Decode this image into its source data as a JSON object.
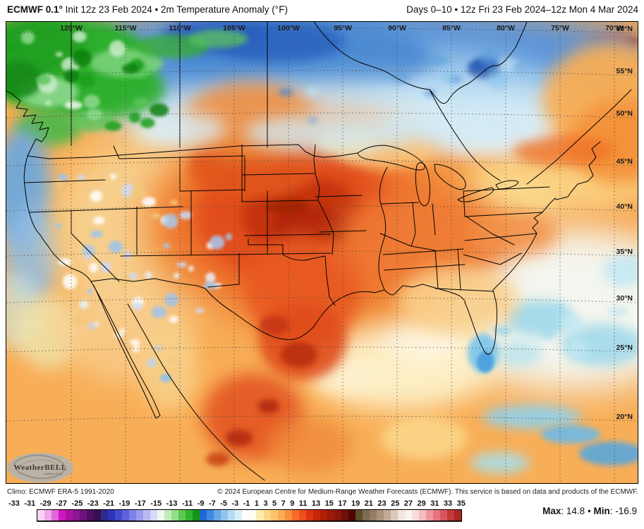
{
  "header": {
    "model_bold": "ECMWF 0.1°",
    "init_text": " Init 12z 23 Feb 2024 • 2m Temperature Anomaly (°F)",
    "valid_text": "Days 0–10 • 12z Fri 23 Feb 2024–12z Mon 4 Mar 2024"
  },
  "map": {
    "lon_labels": [
      "120°W",
      "115°W",
      "110°W",
      "105°W",
      "100°W",
      "95°W",
      "90°W",
      "85°W",
      "80°W",
      "75°W",
      "70°W"
    ],
    "lat_labels": [
      "60°N",
      "55°N",
      "50°N",
      "45°N",
      "40°N",
      "35°N",
      "30°N",
      "25°N",
      "20°N"
    ],
    "logo": {
      "title": "WeatherBELL",
      "subtitle": "Analytics LLC"
    },
    "region_colors": {
      "base_orange": "#f8ae57",
      "deep_orange": "#ef7f2e",
      "atl_orange": "#f49038",
      "pale_yellow": "#fbd788",
      "cream": "#fdeec4",
      "white_zone": "#f4f5ee",
      "cyan_patch": "#9fd8ea",
      "canada_blue": "#5b94d8",
      "canada_blue_dark": "#2f66c0",
      "canada_navy": "#1d4fae",
      "canada_light": "#9cc8ec",
      "canada_pale": "#d2eaf6",
      "nw_green": "#2fae2f",
      "nw_green_dark": "#128a12",
      "nw_green_light": "#8fd98f",
      "core_red": "#e14e1d",
      "core_dark_red": "#c23310",
      "core_darkest": "#a22305",
      "warm_orange": "#f08a3a",
      "pacific_blue": "#6fa8dc",
      "florida_cyan": "#7fc8ea",
      "island_blue": "#5aa7dc"
    }
  },
  "footer": {
    "climo": "Climo: ECMWF ERA-5 1991-2020",
    "copyright": "© 2024 European Centre for Medium-Range Weather Forecasts (ECMWF). This service is based on data and products of the ECMWF.",
    "max_label": "Max",
    "max_value": "14.8",
    "sep": "•",
    "min_label": "Min",
    "min_value": "-16.9"
  },
  "colorbar": {
    "tick_labels": [
      -33,
      -31,
      -29,
      -27,
      -25,
      -23,
      -21,
      -19,
      -17,
      -15,
      -13,
      -11,
      -9,
      -7,
      -5,
      -3,
      -1,
      1,
      3,
      5,
      7,
      9,
      11,
      13,
      15,
      17,
      19,
      21,
      23,
      25,
      27,
      29,
      31,
      33,
      35
    ],
    "colors": [
      "#f7d4f1",
      "#f0a5e9",
      "#e266da",
      "#ce17c0",
      "#ab12a2",
      "#8d1692",
      "#6e117b",
      "#500d61",
      "#35104f",
      "#2b2b91",
      "#2e34ba",
      "#444ace",
      "#5e61d9",
      "#7e80e5",
      "#9b9ced",
      "#b8b9f4",
      "#d7d8fa",
      "#edf9ec",
      "#c3ecbb",
      "#94dd8b",
      "#5bc852",
      "#2fb42f",
      "#169519",
      "#2268d3",
      "#3f8ae0",
      "#69a8e8",
      "#92c2ee",
      "#b8dbf4",
      "#d8eef8",
      "#ffffff",
      "#fffef2",
      "#fdeab0",
      "#fdd685",
      "#fdc26e",
      "#fcab55",
      "#fa8d3f",
      "#f86b29",
      "#ef4f1e",
      "#dd3411",
      "#c52808",
      "#b01f06",
      "#9c1a0a",
      "#8a150c",
      "#6f0e08",
      "#4c0604",
      "#5c4c2a",
      "#7d6a50",
      "#957d68",
      "#ac917a",
      "#c4aa96",
      "#ddc9bb",
      "#f2e7df",
      "#faf3eb",
      "#f9dce0",
      "#f6bcc1",
      "#ee949a",
      "#e3747d",
      "#d8555d",
      "#c23b38",
      "#a82722"
    ]
  }
}
